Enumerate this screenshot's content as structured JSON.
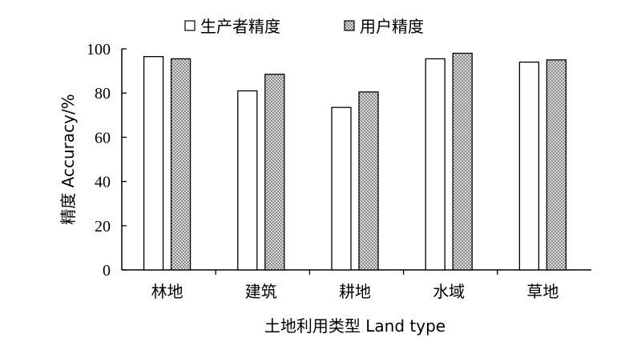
{
  "chart_data": {
    "type": "bar",
    "title": "",
    "xlabel": "土地利用类型 Land type",
    "ylabel": "精度 Accuracy/%",
    "ylim": [
      0,
      100
    ],
    "yticks": [
      0,
      20,
      40,
      60,
      80,
      100
    ],
    "grid": false,
    "legend_position": "top",
    "categories": [
      "林地",
      "建筑",
      "耕地",
      "水域",
      "草地"
    ],
    "series": [
      {
        "name": "生产者精度",
        "values": [
          96.5,
          81,
          73.5,
          95.5,
          94
        ],
        "fill": "#ffffff",
        "pattern": "none"
      },
      {
        "name": "用户精度",
        "values": [
          95.5,
          88.5,
          80.5,
          98,
          95
        ],
        "fill": "#c8c8c8",
        "pattern": "dotted-hatch"
      }
    ],
    "colors": {
      "axis": "#000000",
      "bar_stroke": "#000000"
    }
  }
}
